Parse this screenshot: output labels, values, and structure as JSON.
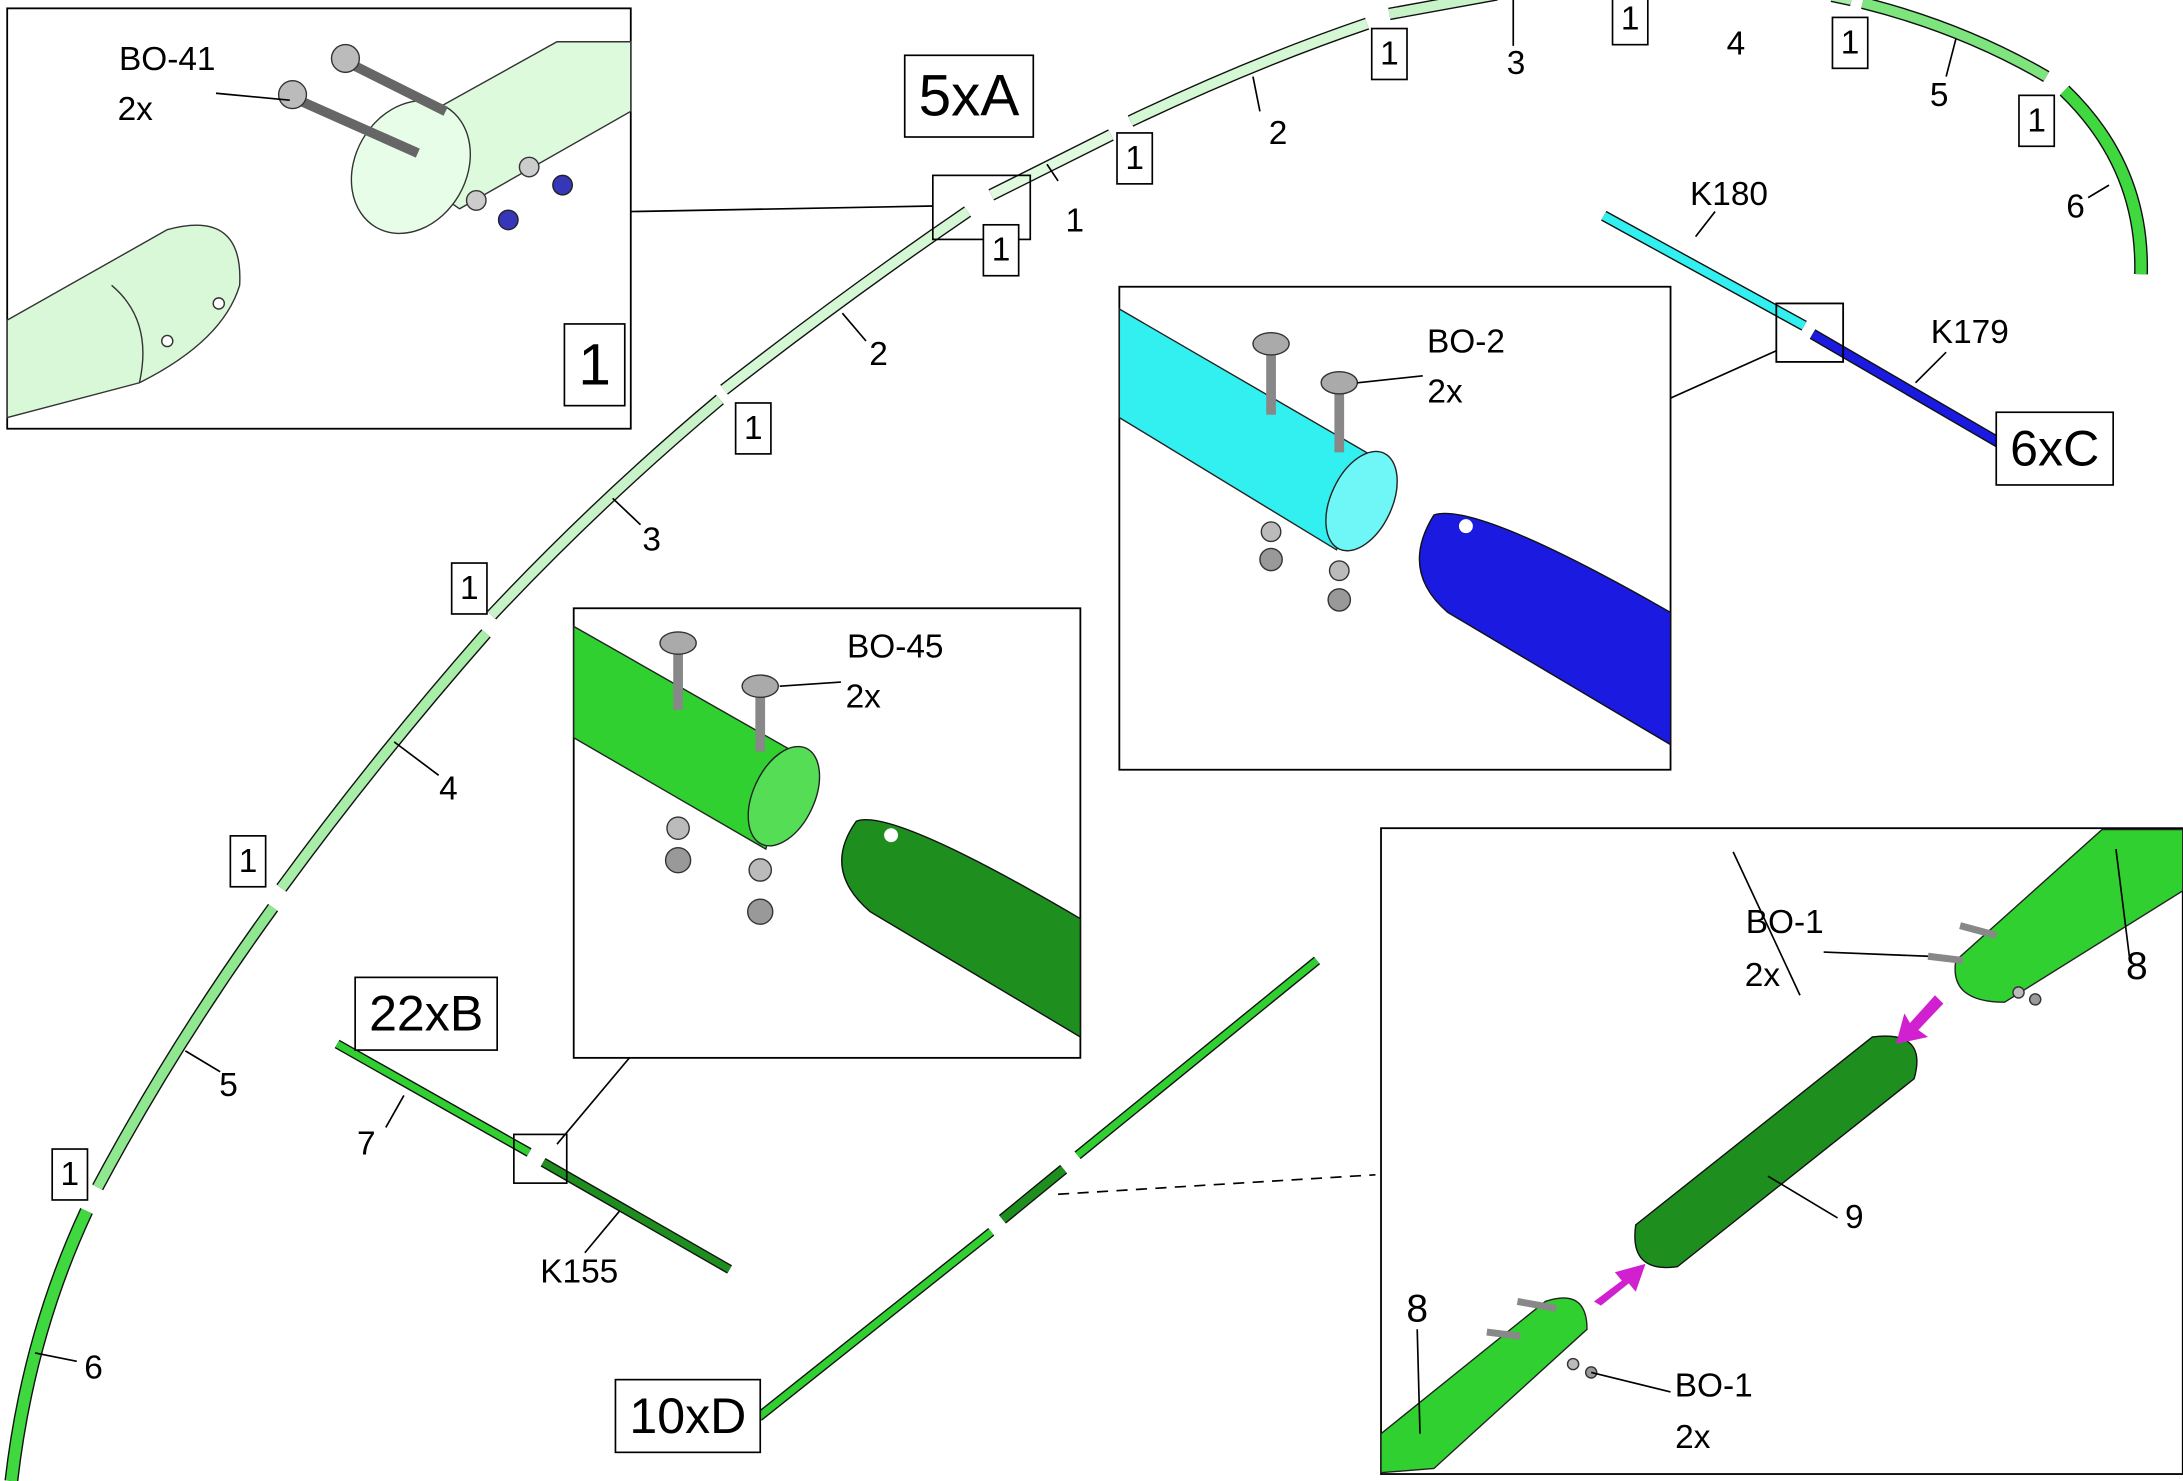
{
  "assemblies": {
    "a": "5xA",
    "b": "22xB",
    "c": "6xC",
    "d": "10xD"
  },
  "detail_a": {
    "part": "BO-41",
    "qty": "2x",
    "step": "1"
  },
  "detail_b": {
    "part": "BO-45",
    "qty": "2x"
  },
  "detail_c": {
    "part": "BO-2",
    "qty": "2x"
  },
  "detail_d": {
    "part_top": "BO-1",
    "qty_top": "2x",
    "tube_top": "8",
    "sleeve": "9",
    "tube_bottom": "8",
    "part_bottom": "BO-1",
    "qty_bottom": "2x"
  },
  "arc_top": {
    "tubes": [
      "1",
      "2",
      "3",
      "4",
      "5",
      "6"
    ],
    "joints": [
      "1",
      "1",
      "1",
      "1",
      "1"
    ]
  },
  "arc_left": {
    "joint_first": "1",
    "tubes": [
      "2",
      "3",
      "4",
      "5",
      "6"
    ],
    "joints": [
      "1",
      "1",
      "1",
      "1"
    ]
  },
  "ridge": {
    "top": "K180",
    "bottom": "K179"
  },
  "brace": {
    "top": "7",
    "bottom": "K155"
  }
}
